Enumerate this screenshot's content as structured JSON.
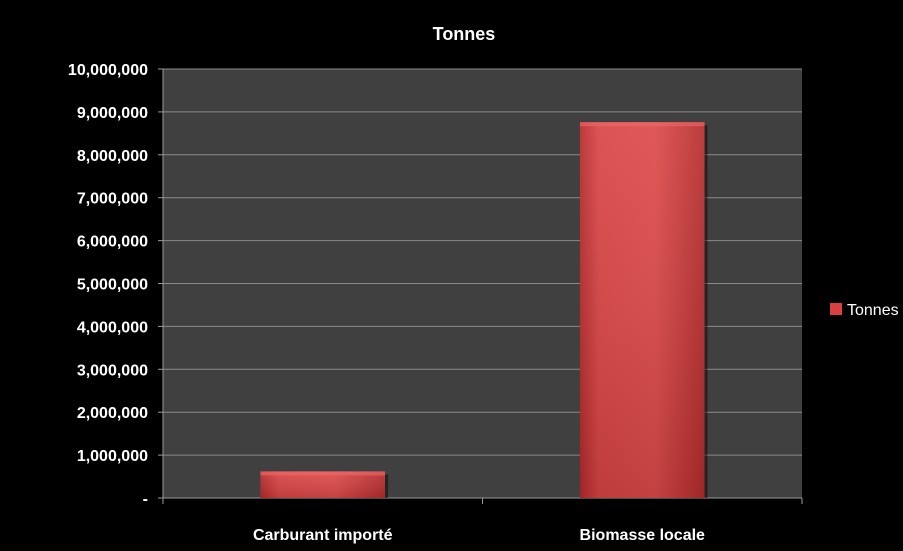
{
  "chart_data": {
    "type": "bar",
    "title": "Tonnes",
    "categories": [
      "Carburant importé",
      "Biomasse locale"
    ],
    "series": [
      {
        "name": "Tonnes",
        "values": [
          620000,
          8760000
        ],
        "color": "#d94040"
      }
    ],
    "ylim": [
      0,
      10000000
    ],
    "yticks": [
      0,
      1000000,
      2000000,
      3000000,
      4000000,
      5000000,
      6000000,
      7000000,
      8000000,
      9000000,
      10000000
    ],
    "ytick_labels": [
      "-",
      "1,000,000",
      "2,000,000",
      "3,000,000",
      "4,000,000",
      "5,000,000",
      "6,000,000",
      "7,000,000",
      "8,000,000",
      "9,000,000",
      "10,000,000"
    ],
    "xlabel": "",
    "ylabel": "",
    "grid": true,
    "legend_position": "right",
    "plot_background": "#404040",
    "background": "#000000"
  }
}
